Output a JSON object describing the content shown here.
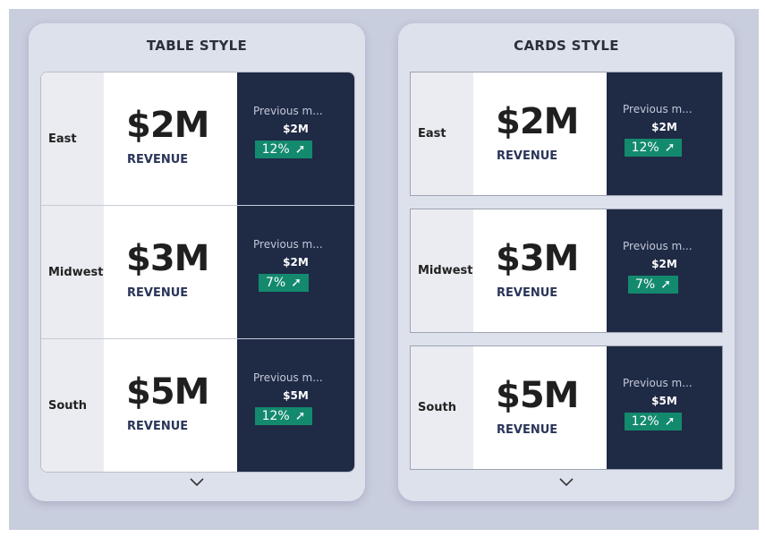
{
  "panels": {
    "table": {
      "title": "TABLE STYLE",
      "rows": [
        {
          "region": "East",
          "value": "$2M",
          "label": "REVENUE",
          "prev_label": "Previous m...",
          "prev_value": "$2M",
          "change": "12%"
        },
        {
          "region": "Midwest",
          "value": "$3M",
          "label": "REVENUE",
          "prev_label": "Previous m...",
          "prev_value": "$2M",
          "change": "7%"
        },
        {
          "region": "South",
          "value": "$5M",
          "label": "REVENUE",
          "prev_label": "Previous m...",
          "prev_value": "$5M",
          "change": "12%"
        }
      ]
    },
    "cards": {
      "title": "CARDS STYLE",
      "rows": [
        {
          "region": "East",
          "value": "$2M",
          "label": "REVENUE",
          "prev_label": "Previous m...",
          "prev_value": "$2M",
          "change": "12%"
        },
        {
          "region": "Midwest",
          "value": "$3M",
          "label": "REVENUE",
          "prev_label": "Previous m...",
          "prev_value": "$2M",
          "change": "7%"
        },
        {
          "region": "South",
          "value": "$5M",
          "label": "REVENUE",
          "prev_label": "Previous m...",
          "prev_value": "$5M",
          "change": "12%"
        }
      ]
    }
  },
  "icons": {
    "trend": "arrow-up-right-icon",
    "more": "chevron-down-icon"
  },
  "colors": {
    "dark_panel": "#1f2a45",
    "badge": "#138a6d",
    "background": "#c9cede"
  }
}
